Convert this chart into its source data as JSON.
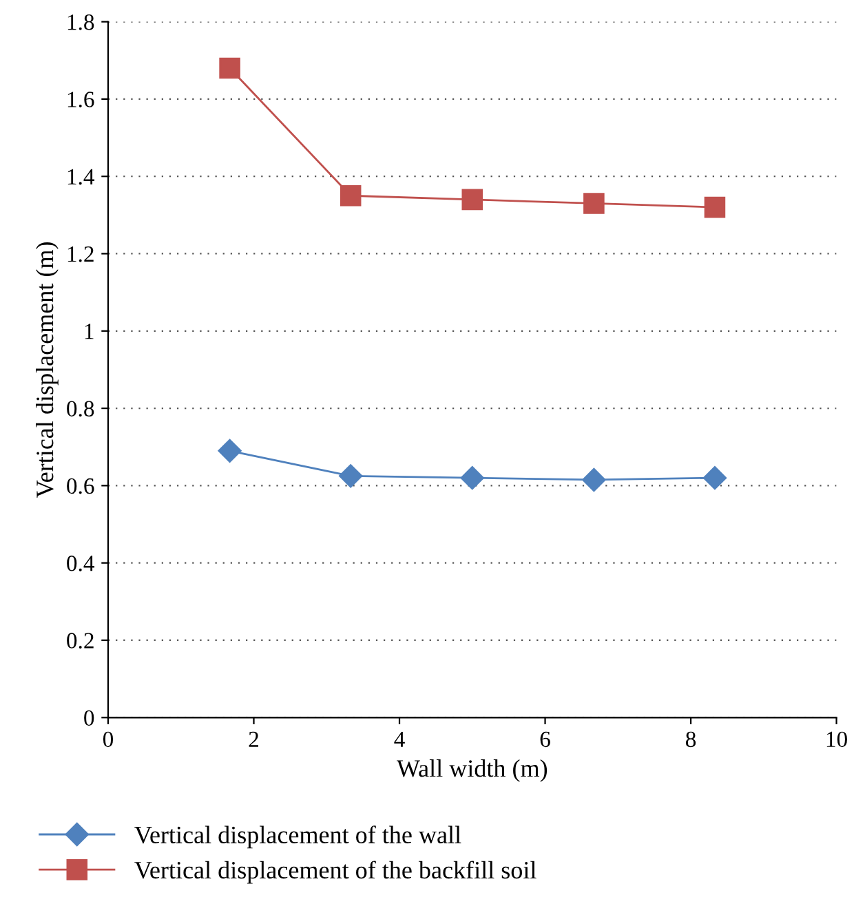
{
  "chart_data": {
    "type": "line",
    "xlabel": "Wall width (m)",
    "ylabel": "Vertical displacement (m)",
    "x": [
      1.67,
      3.33,
      5.0,
      6.67,
      8.33
    ],
    "series": [
      {
        "name": "Vertical displacement of the wall",
        "color": "#4f81bd",
        "marker": "diamond",
        "values": [
          0.69,
          0.625,
          0.62,
          0.615,
          0.62
        ]
      },
      {
        "name": "Vertical displacement of the backfill soil",
        "color": "#c0504d",
        "marker": "square",
        "values": [
          1.68,
          1.35,
          1.34,
          1.33,
          1.32
        ]
      }
    ],
    "xlim": [
      0,
      10
    ],
    "xticks": [
      0,
      2,
      4,
      6,
      8,
      10
    ],
    "ylim": [
      0,
      1.8
    ],
    "yticks": [
      0,
      0.2,
      0.4,
      0.6,
      0.8,
      1,
      1.2,
      1.4,
      1.6,
      1.8
    ],
    "grid": "y",
    "legend": "bottom",
    "line_style": "solid"
  }
}
